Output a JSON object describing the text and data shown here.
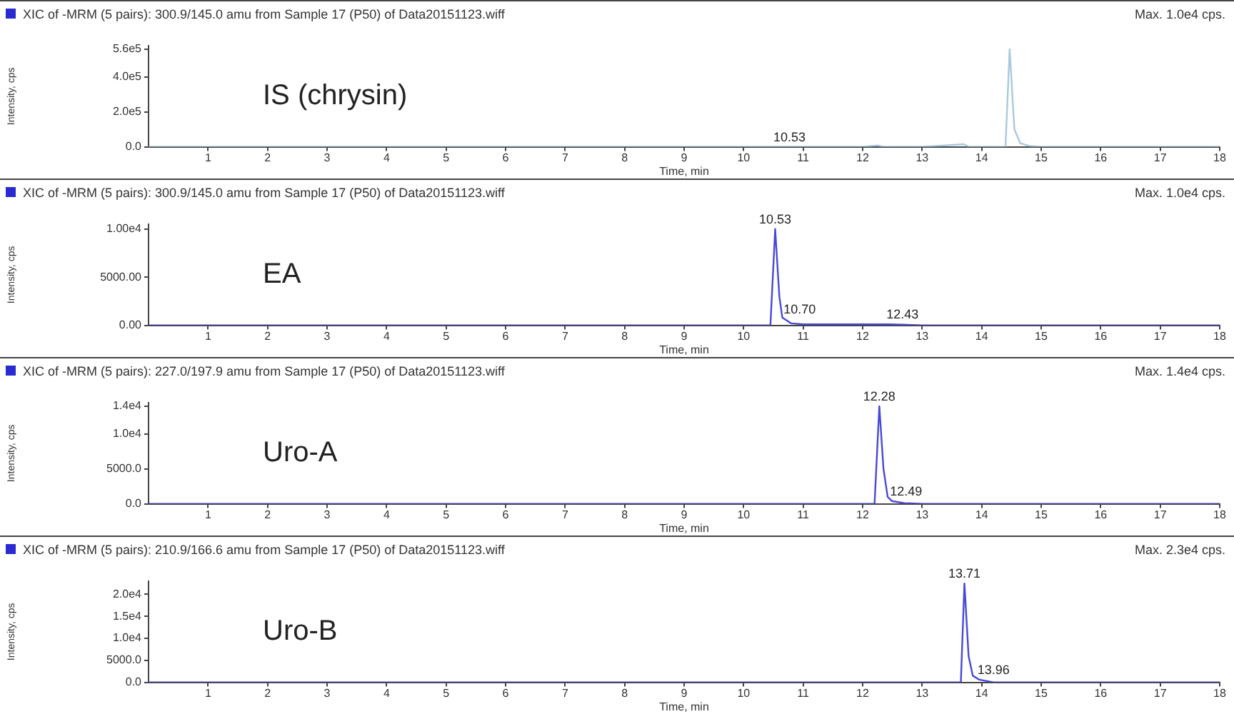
{
  "chart_data": [
    {
      "type": "line",
      "title": "XIC of -MRM (5 pairs): 300.9/145.0 amu from Sample 17 (P50) of Data20151123.wiff",
      "xlabel": "Time, min",
      "ylabel": "Intensity, cps",
      "annotations": [
        "Max. 1.0e4 cps.",
        "IS (chrysin)",
        {
          "text": "10.53",
          "x": 10.53,
          "y": 0
        }
      ],
      "series": [
        {
          "color": "#a9c9de",
          "x": [
            0,
            1,
            2,
            3,
            4,
            5,
            6,
            7,
            8,
            9,
            10,
            10.53,
            11,
            12,
            12.25,
            12.35,
            13,
            13.7,
            13.78,
            14,
            14.4,
            14.47,
            14.55,
            14.65,
            14.8,
            15,
            16,
            17,
            18
          ],
          "values": [
            0,
            0,
            0,
            0,
            0,
            0,
            0,
            0,
            0,
            0,
            0,
            0,
            0,
            0,
            8000,
            0,
            0,
            15000,
            0,
            0,
            0,
            560000,
            100000,
            20000,
            5000,
            0,
            0,
            0,
            0
          ]
        }
      ],
      "xlim": [
        0,
        18
      ],
      "xticks": [
        1,
        2,
        3,
        4,
        5,
        6,
        7,
        8,
        9,
        10,
        11,
        12,
        13,
        14,
        15,
        16,
        17,
        18
      ],
      "ylim": [
        0,
        580000
      ],
      "yticks": [
        {
          "value": 0,
          "label": "0.0"
        },
        {
          "value": 200000,
          "label": "2.0e5"
        },
        {
          "value": 400000,
          "label": "4.0e5"
        },
        {
          "value": 560000,
          "label": "5.6e5"
        }
      ],
      "grid": false,
      "legend": false
    },
    {
      "type": "line",
      "title": "XIC of -MRM (5 pairs): 300.9/145.0 amu from Sample 17 (P50) of Data20151123.wiff",
      "xlabel": "Time, min",
      "ylabel": "Intensity, cps",
      "annotations": [
        "Max. 1.0e4 cps.",
        "EA",
        {
          "text": "10.53",
          "x": 10.53,
          "y": 10000
        },
        {
          "text": "10.70",
          "x": 10.7,
          "y": 600
        },
        {
          "text": "12.43",
          "x": 12.43,
          "y": 100
        }
      ],
      "series": [
        {
          "color": "#4848d8",
          "x": [
            0,
            1,
            2,
            3,
            4,
            5,
            6,
            7,
            8,
            9,
            10,
            10.45,
            10.53,
            10.6,
            10.65,
            10.7,
            10.8,
            11,
            12,
            12.43,
            13,
            14,
            15,
            16,
            17,
            18
          ],
          "values": [
            0,
            0,
            0,
            0,
            0,
            0,
            0,
            0,
            0,
            0,
            0,
            0,
            10000,
            3000,
            800,
            600,
            200,
            100,
            100,
            100,
            0,
            0,
            0,
            0,
            0,
            0
          ]
        }
      ],
      "xlim": [
        0,
        18
      ],
      "xticks": [
        1,
        2,
        3,
        4,
        5,
        6,
        7,
        8,
        9,
        10,
        11,
        12,
        13,
        14,
        15,
        16,
        17,
        18
      ],
      "ylim": [
        0,
        10500
      ],
      "yticks": [
        {
          "value": 0,
          "label": "0.00"
        },
        {
          "value": 5000,
          "label": "5000.00"
        },
        {
          "value": 10000,
          "label": "1.00e4"
        }
      ],
      "grid": false,
      "legend": false
    },
    {
      "type": "line",
      "title": "XIC of -MRM (5 pairs): 227.0/197.9 amu from Sample 17 (P50) of Data20151123.wiff",
      "xlabel": "Time, min",
      "ylabel": "Intensity, cps",
      "annotations": [
        "Max. 1.4e4 cps.",
        "Uro-A",
        {
          "text": "12.28",
          "x": 12.28,
          "y": 14000
        },
        {
          "text": "12.49",
          "x": 12.49,
          "y": 400
        }
      ],
      "series": [
        {
          "color": "#4848d8",
          "x": [
            0,
            1,
            2,
            3,
            4,
            5,
            6,
            7,
            8,
            9,
            10,
            11,
            12,
            12.2,
            12.28,
            12.35,
            12.42,
            12.49,
            12.7,
            13,
            14,
            15,
            16,
            17,
            18
          ],
          "values": [
            0,
            0,
            0,
            0,
            0,
            0,
            0,
            0,
            0,
            0,
            0,
            0,
            0,
            0,
            14000,
            5000,
            1000,
            400,
            100,
            0,
            0,
            0,
            0,
            0,
            0
          ]
        }
      ],
      "xlim": [
        0,
        18
      ],
      "xticks": [
        1,
        2,
        3,
        4,
        5,
        6,
        7,
        8,
        9,
        10,
        11,
        12,
        13,
        14,
        15,
        16,
        17,
        18
      ],
      "ylim": [
        0,
        14500
      ],
      "yticks": [
        {
          "value": 0,
          "label": "0.0"
        },
        {
          "value": 5000,
          "label": "5000.0"
        },
        {
          "value": 10000,
          "label": "1.0e4"
        },
        {
          "value": 14000,
          "label": "1.4e4"
        }
      ],
      "grid": false,
      "legend": false
    },
    {
      "type": "line",
      "title": "XIC of -MRM (5 pairs): 210.9/166.6 amu from Sample 17 (P50) of Data20151123.wiff",
      "xlabel": "Time, min",
      "ylabel": "Intensity, cps",
      "annotations": [
        "Max. 2.3e4 cps.",
        "Uro-B",
        {
          "text": "13.71",
          "x": 13.71,
          "y": 22500
        },
        {
          "text": "13.96",
          "x": 13.96,
          "y": 600
        }
      ],
      "series": [
        {
          "color": "#4848d8",
          "x": [
            0,
            1,
            2,
            3,
            4,
            5,
            6,
            7,
            8,
            9,
            10,
            11,
            12,
            13,
            13.65,
            13.71,
            13.78,
            13.85,
            13.96,
            14.2,
            15,
            16,
            17,
            18
          ],
          "values": [
            0,
            0,
            0,
            0,
            0,
            0,
            0,
            0,
            0,
            0,
            0,
            0,
            0,
            0,
            0,
            22500,
            6000,
            1500,
            600,
            0,
            0,
            0,
            0,
            0
          ]
        }
      ],
      "xlim": [
        0,
        18
      ],
      "xticks": [
        1,
        2,
        3,
        4,
        5,
        6,
        7,
        8,
        9,
        10,
        11,
        12,
        13,
        14,
        15,
        16,
        17,
        18
      ],
      "ylim": [
        0,
        23000
      ],
      "yticks": [
        {
          "value": 0,
          "label": "0.0"
        },
        {
          "value": 5000,
          "label": "5000.0"
        },
        {
          "value": 10000,
          "label": "1.0e4"
        },
        {
          "value": 15000,
          "label": "1.5e4"
        },
        {
          "value": 20000,
          "label": "2.0e4"
        }
      ],
      "grid": false,
      "legend": false
    }
  ]
}
